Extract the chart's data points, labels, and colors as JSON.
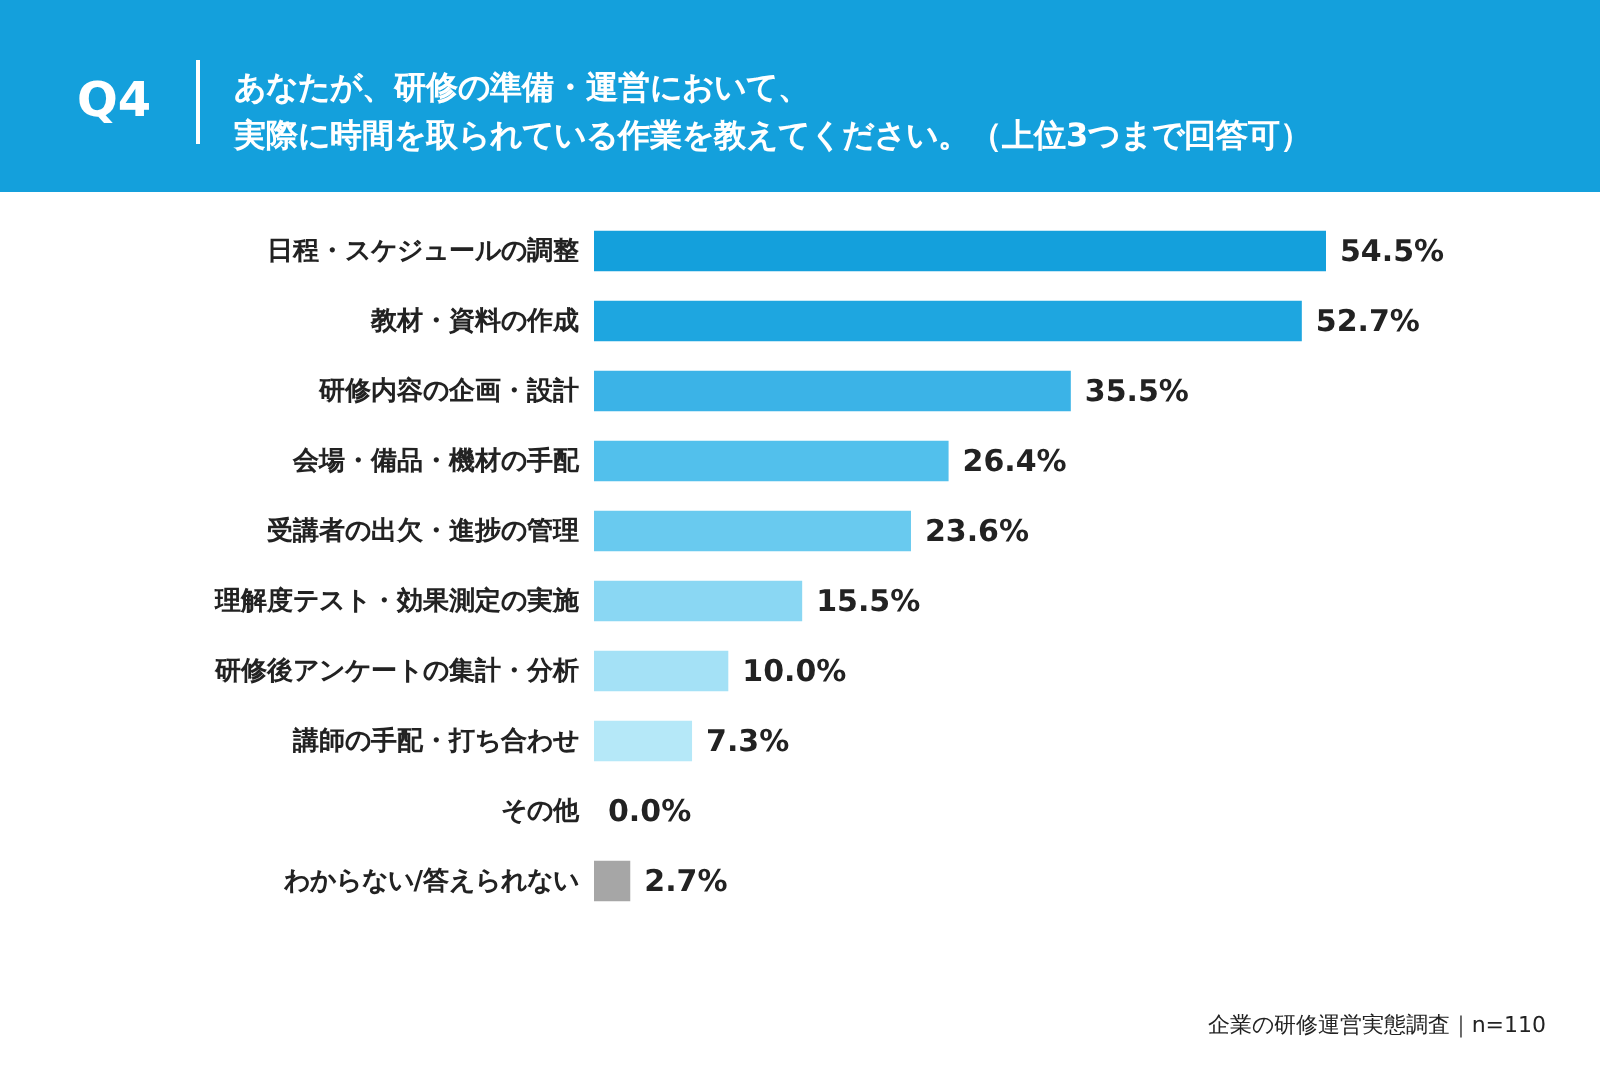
{
  "chart_data": {
    "type": "bar",
    "orientation": "horizontal",
    "title": "Q4",
    "subtitle": [
      "あなたが、研修の準備・運営において、",
      "実際に時間を取られている作業を教えてください。（上位3つまで回答可）"
    ],
    "categories": [
      "日程・スケジュールの調整",
      "教材・資料の作成",
      "研修内容の企画・設計",
      "会場・備品・機材の手配",
      "受講者の出欠・進捗の管理",
      "理解度テスト・効果測定の実施",
      "研修後アンケートの集計・分析",
      "講師の手配・打ち合わせ",
      "その他",
      "わからない/答えられない"
    ],
    "values": [
      54.5,
      52.7,
      35.5,
      26.4,
      23.6,
      15.5,
      10.0,
      7.3,
      0.0,
      2.7
    ],
    "value_labels": [
      "54.5%",
      "52.7%",
      "35.5%",
      "26.4%",
      "23.6%",
      "15.5%",
      "10.0%",
      "7.3%",
      "0.0%",
      "2.7%"
    ],
    "colors": [
      "#14a0dc",
      "#1ea6e0",
      "#3bb3e7",
      "#52c0ec",
      "#69caef",
      "#8ad7f3",
      "#a4e1f6",
      "#b5e8f8",
      "#c5edfa",
      "#a6a6a6"
    ],
    "tick_labels": "y",
    "legend": false,
    "annotations": [
      "企業の研修運営実態調査｜n=110"
    ]
  }
}
